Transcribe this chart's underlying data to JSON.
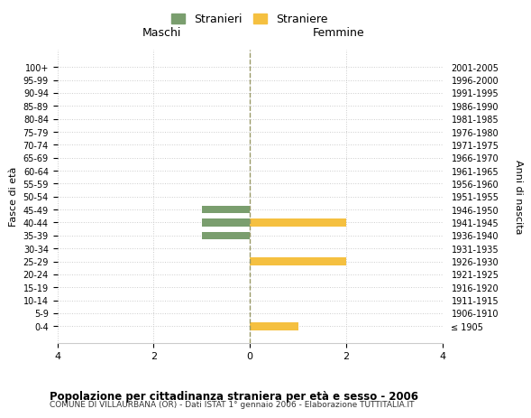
{
  "age_groups": [
    "100+",
    "95-99",
    "90-94",
    "85-89",
    "80-84",
    "75-79",
    "70-74",
    "65-69",
    "60-64",
    "55-59",
    "50-54",
    "45-49",
    "40-44",
    "35-39",
    "30-34",
    "25-29",
    "20-24",
    "15-19",
    "10-14",
    "5-9",
    "0-4"
  ],
  "birth_years": [
    "≤ 1905",
    "1906-1910",
    "1911-1915",
    "1916-1920",
    "1921-1925",
    "1926-1930",
    "1931-1935",
    "1936-1940",
    "1941-1945",
    "1946-1950",
    "1951-1955",
    "1956-1960",
    "1961-1965",
    "1966-1970",
    "1971-1975",
    "1976-1980",
    "1981-1985",
    "1986-1990",
    "1991-1995",
    "1996-2000",
    "2001-2005"
  ],
  "males": [
    0,
    0,
    0,
    0,
    0,
    0,
    0,
    0,
    0,
    0,
    0,
    1,
    1,
    1,
    0,
    0,
    0,
    0,
    0,
    0,
    0
  ],
  "females": [
    0,
    0,
    0,
    0,
    0,
    0,
    0,
    0,
    0,
    0,
    0,
    0,
    2,
    0,
    0,
    2,
    0,
    0,
    0,
    0,
    1
  ],
  "male_color": "#7a9e6e",
  "female_color": "#f5c040",
  "xlim": [
    -4,
    4
  ],
  "title": "Popolazione per cittadinanza straniera per età e sesso - 2006",
  "subtitle": "COMUNE DI VILLAURBANA (OR) - Dati ISTAT 1° gennaio 2006 - Elaborazione TUTTITALIA.IT",
  "ylabel_left": "Fasce di età",
  "ylabel_right": "Anni di nascita",
  "legend_stranieri": "Stranieri",
  "legend_straniere": "Straniere",
  "section_maschi": "Maschi",
  "section_femmine": "Femmine",
  "xticks": [
    -4,
    -2,
    0,
    2,
    4
  ],
  "xtick_labels": [
    "4",
    "2",
    "0",
    "2",
    "4"
  ],
  "background_color": "#ffffff",
  "grid_color": "#cccccc"
}
